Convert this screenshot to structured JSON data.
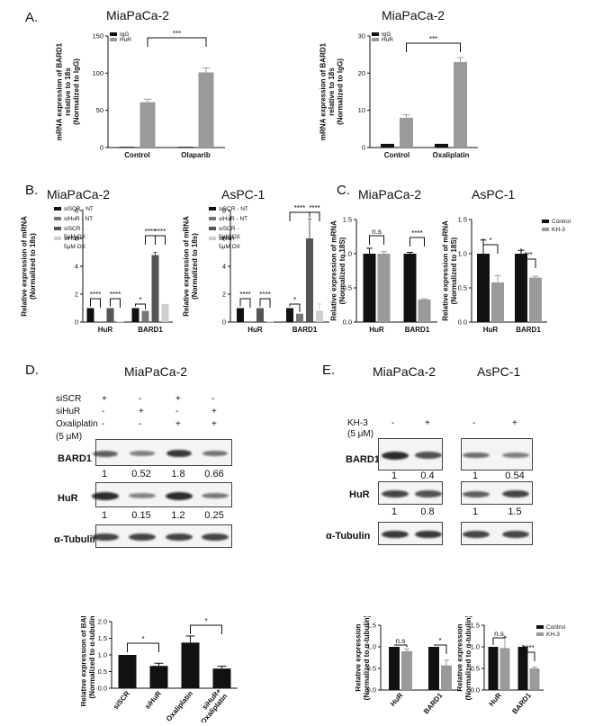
{
  "panel_labels": {
    "A": "A.",
    "B": "B.",
    "C": "C.",
    "D": "D.",
    "E": "E."
  },
  "titles": {
    "miapaca": "MiaPaCa-2",
    "aspc": "AsPC-1"
  },
  "legend": {
    "igg": "IgG",
    "hur": "HuR",
    "control": "Control",
    "kh3": "KH-3",
    "b": [
      "siSCR - NT",
      "siHuR - NT",
      "siSCR -\n5μM OX",
      "siHuR -\n5μM OX"
    ]
  },
  "ylabels": {
    "a": "mRNA expression of BARD1\nrelative to 18s\n(Normalized to IgG)",
    "b": "Relative expression of mRNA\n(Normalized to 18s)",
    "c": "Relative expression of mRNA\n(Normalized to 18S)",
    "d": "Relative expression of BARD1\n(Normalized to α-tubulin )",
    "e": "Relative expression\n(Normalized to α-tubulin)"
  },
  "significance": {
    "s3": "***",
    "s4": "****",
    "s1": "*",
    "ns": "n.s"
  },
  "chart_data": [
    {
      "id": "A1",
      "type": "bar",
      "title": "MiaPaCa-2",
      "categories": [
        "Control",
        "Olaparib"
      ],
      "series": [
        {
          "name": "IgG",
          "values": [
            1,
            1
          ],
          "color": "#111111"
        },
        {
          "name": "HuR",
          "values": [
            61,
            101
          ],
          "errors": [
            4,
            6
          ],
          "color": "#9a9a9a"
        }
      ],
      "ylim": [
        0,
        150
      ],
      "yticks": [
        0,
        50,
        100,
        150
      ],
      "xticks": [
        "Control",
        "Olaparib"
      ]
    },
    {
      "id": "A2",
      "type": "bar",
      "title": "MiaPaCa-2",
      "categories": [
        "Control",
        "Oxaliplatin"
      ],
      "series": [
        {
          "name": "IgG",
          "values": [
            1,
            1
          ],
          "color": "#111111"
        },
        {
          "name": "HuR",
          "values": [
            8,
            23
          ],
          "errors": [
            0.8,
            1.2
          ],
          "color": "#9a9a9a"
        }
      ],
      "ylim": [
        0,
        30
      ],
      "yticks": [
        0,
        10,
        20,
        30
      ],
      "xticks": [
        "Control",
        "Oxaliplatin"
      ]
    },
    {
      "id": "B1",
      "type": "bar",
      "title": "MiaPaCa-2",
      "categories": [
        "HuR",
        "BARD1"
      ],
      "series": [
        {
          "name": "siSCR - NT",
          "values": [
            1,
            1
          ],
          "color": "#111111"
        },
        {
          "name": "siHuR - NT",
          "values": [
            0.05,
            0.8
          ],
          "color": "#777777"
        },
        {
          "name": "siSCR - 5μM OX",
          "values": [
            1,
            4.8
          ],
          "errors": [
            0,
            0.2
          ],
          "color": "#555555"
        },
        {
          "name": "siHuR - 5μM OX",
          "values": [
            0.03,
            1.3
          ],
          "color": "#cfcfcf"
        }
      ],
      "ylim": [
        0,
        8
      ],
      "yticks": [
        0,
        2,
        4,
        6,
        8
      ]
    },
    {
      "id": "B2",
      "type": "bar",
      "title": "AsPC-1",
      "categories": [
        "HuR",
        "BARD1"
      ],
      "series": [
        {
          "name": "siSCR - NT",
          "values": [
            1,
            1
          ],
          "color": "#111111"
        },
        {
          "name": "siHuR - NT",
          "values": [
            0.05,
            0.6
          ],
          "color": "#777777"
        },
        {
          "name": "siSCR - 5μM OX",
          "values": [
            1,
            6
          ],
          "errors": [
            0,
            1.4
          ],
          "color": "#555555"
        },
        {
          "name": "siHuR - 5μM OX",
          "values": [
            0.03,
            0.8
          ],
          "errors": [
            0,
            0.5
          ],
          "color": "#cfcfcf"
        }
      ],
      "ylim": [
        0,
        8
      ],
      "yticks": [
        0,
        2,
        4,
        6,
        8
      ]
    },
    {
      "id": "C1",
      "type": "bar",
      "title": "MiaPaCa-2",
      "categories": [
        "HuR",
        "BARD1"
      ],
      "series": [
        {
          "name": "Control",
          "values": [
            1.0,
            1.0
          ],
          "errors": [
            0.08,
            0.02
          ],
          "color": "#111111"
        },
        {
          "name": "KH-3",
          "values": [
            1.0,
            0.33
          ],
          "errors": [
            0.03,
            0.01
          ],
          "color": "#9a9a9a"
        }
      ],
      "ylim": [
        0,
        1.5
      ],
      "yticks": [
        "0.0",
        "0.5",
        "1.0",
        "1.5"
      ]
    },
    {
      "id": "C2",
      "type": "bar",
      "title": "AsPC-1",
      "categories": [
        "HuR",
        "BARD1"
      ],
      "series": [
        {
          "name": "Control",
          "values": [
            1.0,
            1.0
          ],
          "errors": [
            0.2,
            0.05
          ],
          "color": "#111111"
        },
        {
          "name": "KH-3",
          "values": [
            0.58,
            0.65
          ],
          "errors": [
            0.1,
            0.02
          ],
          "color": "#9a9a9a"
        }
      ],
      "ylim": [
        0,
        1.5
      ],
      "yticks": [
        "0.0",
        "0.5",
        "1.0",
        "1.5"
      ]
    },
    {
      "id": "D",
      "type": "bar",
      "categories": [
        "siSCR",
        "siHuR",
        "Oxaliplatin",
        "siHuR+\nOxaliplatin"
      ],
      "values": [
        1.0,
        0.67,
        1.37,
        0.59
      ],
      "errors": [
        0,
        0.08,
        0.2,
        0.07
      ],
      "color": "#111111",
      "ylim": [
        0,
        2.0
      ],
      "yticks": [
        "0.0",
        "0.5",
        "1.0",
        "1.5",
        "2.0"
      ]
    },
    {
      "id": "E1",
      "type": "bar",
      "categories": [
        "HuR",
        "BARD1"
      ],
      "series": [
        {
          "name": "Control",
          "values": [
            1.0,
            1.0
          ],
          "errors": [
            0,
            0
          ],
          "color": "#111111"
        },
        {
          "name": "KH-3",
          "values": [
            0.9,
            0.57
          ],
          "errors": [
            0.05,
            0.12
          ],
          "color": "#9a9a9a"
        }
      ],
      "ylim": [
        0,
        1.5
      ],
      "yticks": [
        "0.0",
        "0.5",
        "1.0",
        "1.5"
      ]
    },
    {
      "id": "E2",
      "type": "bar",
      "categories": [
        "HuR",
        "BARD1"
      ],
      "series": [
        {
          "name": "Control",
          "values": [
            1.0,
            1.0
          ],
          "errors": [
            0,
            0
          ],
          "color": "#111111"
        },
        {
          "name": "KH-3",
          "values": [
            0.97,
            0.5
          ],
          "errors": [
            0.25,
            0.03
          ],
          "color": "#9a9a9a"
        }
      ],
      "ylim": [
        0,
        1.5
      ],
      "yticks": [
        "0.0",
        "0.5",
        "1.0",
        "1.5"
      ]
    }
  ],
  "blot_d": {
    "conditions": [
      {
        "label": "siSCR",
        "marks": [
          "+",
          "-",
          "+",
          "-"
        ]
      },
      {
        "label": "siHuR",
        "marks": [
          "-",
          "+",
          "-",
          "+"
        ]
      },
      {
        "label": "Oxaliplatin",
        "marks": [
          "-",
          "-",
          "+",
          "+"
        ]
      },
      {
        "label": "(5 μM)",
        "marks": [
          "",
          "",
          "",
          ""
        ]
      }
    ],
    "bard1": {
      "label": "BARD1",
      "quant": [
        "1",
        "0.52",
        "1.8",
        "0.66"
      ],
      "intensity": [
        0.6,
        0.35,
        0.9,
        0.45
      ]
    },
    "hur": {
      "label": "HuR",
      "quant": [
        "1",
        "0.15",
        "1.2",
        "0.25"
      ],
      "intensity": [
        1,
        0.3,
        1,
        0.4
      ]
    },
    "tubulin": {
      "label": "α-Tubulin",
      "intensity": [
        0.8,
        0.8,
        0.8,
        0.8
      ]
    }
  },
  "blot_e": {
    "condition": "KH-3\n(5 μM)",
    "marks": [
      "-",
      "+",
      "-",
      "+"
    ],
    "bard1": {
      "label": "BARD1",
      "quant": [
        "1",
        "0.4",
        "1",
        "0.54"
      ],
      "intensity": [
        1,
        0.7,
        0.5,
        0.35
      ]
    },
    "hur": {
      "label": "HuR",
      "quant": [
        "1",
        "0.8",
        "1",
        "1.5"
      ],
      "intensity": [
        0.8,
        0.7,
        0.6,
        0.8
      ]
    },
    "tubulin": {
      "label": "α-Tubulin",
      "intensity": [
        0.9,
        0.9,
        0.8,
        0.8
      ]
    }
  }
}
